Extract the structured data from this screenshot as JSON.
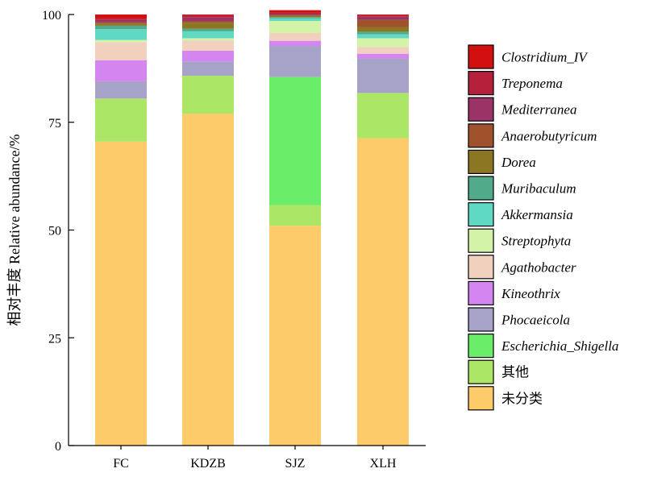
{
  "chart_data": {
    "type": "bar",
    "stacked": true,
    "title": "",
    "xlabel": "",
    "ylabel": "相对丰度 Relative abundance/%",
    "ylim": [
      0,
      100
    ],
    "yticks": [
      "0",
      "25",
      "50",
      "75",
      "100"
    ],
    "legend_position": "right",
    "categories": [
      "FC",
      "KDZB",
      "SJZ",
      "XLH"
    ],
    "series": [
      {
        "name": "未分类",
        "color": "#FECB6A",
        "values": [
          70.5,
          77.0,
          51.0,
          71.3
        ]
      },
      {
        "name": "其他",
        "color": "#ACE666",
        "values": [
          10.0,
          8.8,
          4.8,
          10.5
        ]
      },
      {
        "name": "Escherichia_Shigella",
        "color": "#6AEE6A",
        "values": [
          0.0,
          0.0,
          29.7,
          0.0
        ]
      },
      {
        "name": "Phocaeicola",
        "color": "#A6A2C8",
        "values": [
          4.0,
          3.3,
          7.2,
          8.0
        ]
      },
      {
        "name": "Kineothrix",
        "color": "#D585F0",
        "values": [
          4.9,
          2.5,
          1.2,
          1.1
        ]
      },
      {
        "name": "Agathobacter",
        "color": "#F1D1BD",
        "values": [
          4.2,
          2.4,
          1.8,
          1.6
        ]
      },
      {
        "name": "Streptophyta",
        "color": "#D2F3A8",
        "values": [
          0.5,
          0.5,
          2.8,
          2.0
        ]
      },
      {
        "name": "Akkermansia",
        "color": "#5FD8C4",
        "values": [
          2.5,
          1.6,
          0.6,
          0.9
        ]
      },
      {
        "name": "Muribaculum",
        "color": "#51AB8B",
        "values": [
          0.8,
          0.6,
          0.3,
          0.6
        ]
      },
      {
        "name": "Dorea",
        "color": "#8B7624",
        "values": [
          0.5,
          1.4,
          0.3,
          1.1
        ]
      },
      {
        "name": "Anaerobutyricum",
        "color": "#A0522D",
        "values": [
          0.3,
          0.4,
          0.2,
          1.7
        ]
      },
      {
        "name": "Mediterranea",
        "color": "#9B3366",
        "values": [
          0.6,
          0.8,
          0.2,
          0.7
        ]
      },
      {
        "name": "Treponema",
        "color": "#B5213A",
        "values": [
          0.2,
          0.5,
          0.3,
          0.3
        ]
      },
      {
        "name": "Clostridium_IV",
        "color": "#D21010",
        "values": [
          1.0,
          0.2,
          0.6,
          0.2
        ]
      }
    ],
    "legend_order": [
      "Clostridium_IV",
      "Treponema",
      "Mediterranea",
      "Anaerobutyricum",
      "Dorea",
      "Muribaculum",
      "Akkermansia",
      "Streptophyta",
      "Agathobacter",
      "Kineothrix",
      "Phocaeicola",
      "Escherichia_Shigella",
      "其他",
      "未分类"
    ]
  }
}
